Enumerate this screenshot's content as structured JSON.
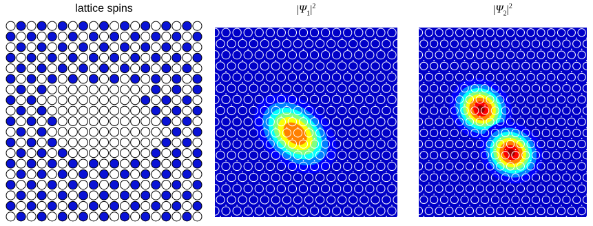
{
  "chart_data": [
    {
      "type": "lattice",
      "title": "lattice spins",
      "rows": 19,
      "cols": 19,
      "colors": {
        "spin_up": "#0a13d6",
        "spin_down": "#ffffff",
        "outline": "#000000"
      },
      "spins": [
        "0101010101010101010",
        "1010101010101010101",
        "0101010101010101010",
        "1010101010101010101",
        "0101010101010101010",
        "1010101010101010101",
        "0101000000000010101",
        "1010000000000101010",
        "0101000000000010101",
        "1010100000000001010",
        "0101000000000000101",
        "1010100000000001010",
        "0101010000000010101",
        "1010101010101010101",
        "0101010101010101010",
        "1010101010101010101",
        "0101010101010101010",
        "1010101010101010101",
        "0101010101010101010"
      ]
    },
    {
      "type": "heatmap",
      "title": {
        "base": "Ψ",
        "sub": "1",
        "sup": "2"
      },
      "colormap": "jet",
      "background": "#0000c8",
      "lattice_markers": "white circles",
      "blobs": [
        {
          "cx": 0.44,
          "cy": 0.56,
          "sx": 0.13,
          "sy": 0.085,
          "angle_deg": 42,
          "amp": 0.88
        }
      ]
    },
    {
      "type": "heatmap",
      "title": {
        "base": "Ψ",
        "sub": "2",
        "sup": "2"
      },
      "colormap": "jet",
      "background": "#0000c8",
      "lattice_markers": "white circles",
      "blobs": [
        {
          "cx": 0.37,
          "cy": 0.43,
          "sx": 0.095,
          "sy": 0.075,
          "angle_deg": 40,
          "amp": 1.0
        },
        {
          "cx": 0.55,
          "cy": 0.66,
          "sx": 0.095,
          "sy": 0.075,
          "angle_deg": 40,
          "amp": 1.0
        }
      ]
    }
  ]
}
